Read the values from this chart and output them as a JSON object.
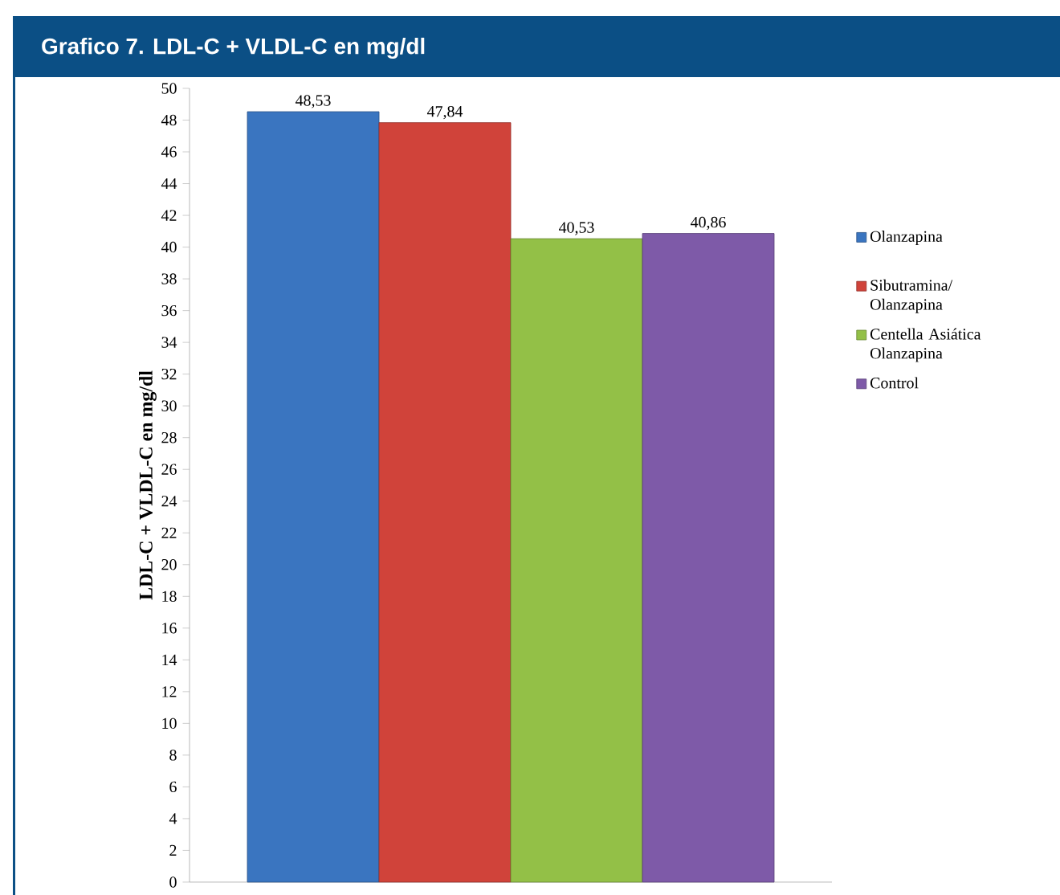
{
  "chart_data": {
    "type": "bar",
    "title": "Grafico 7. LDL-C + VLDL-C en mg/dl",
    "ylabel": "LDL-C + VLDL-C en mg/dl",
    "categories": [
      null
    ],
    "series": [
      {
        "name": "Olanzapina",
        "color": "#3a75c0",
        "values": [
          48.53
        ],
        "value_labels": [
          "48,53"
        ]
      },
      {
        "name": "Sibutramina/ Olanzapina",
        "color": "#d0433a",
        "values": [
          47.84
        ],
        "value_labels": [
          "47,84"
        ]
      },
      {
        "name": "Centella Asiática Olanzapina",
        "color": "#93c047",
        "values": [
          40.53
        ],
        "value_labels": [
          "40,53"
        ]
      },
      {
        "name": "Control",
        "color": "#7e5aa8",
        "values": [
          40.86
        ],
        "value_labels": [
          "40,86"
        ]
      }
    ],
    "ylim": [
      0,
      50
    ],
    "yticks": [
      0,
      2,
      4,
      6,
      8,
      10,
      12,
      14,
      16,
      18,
      20,
      22,
      24,
      26,
      28,
      30,
      32,
      34,
      36,
      38,
      40,
      42,
      44,
      46,
      48,
      50
    ],
    "grid": false,
    "legend": "right"
  }
}
